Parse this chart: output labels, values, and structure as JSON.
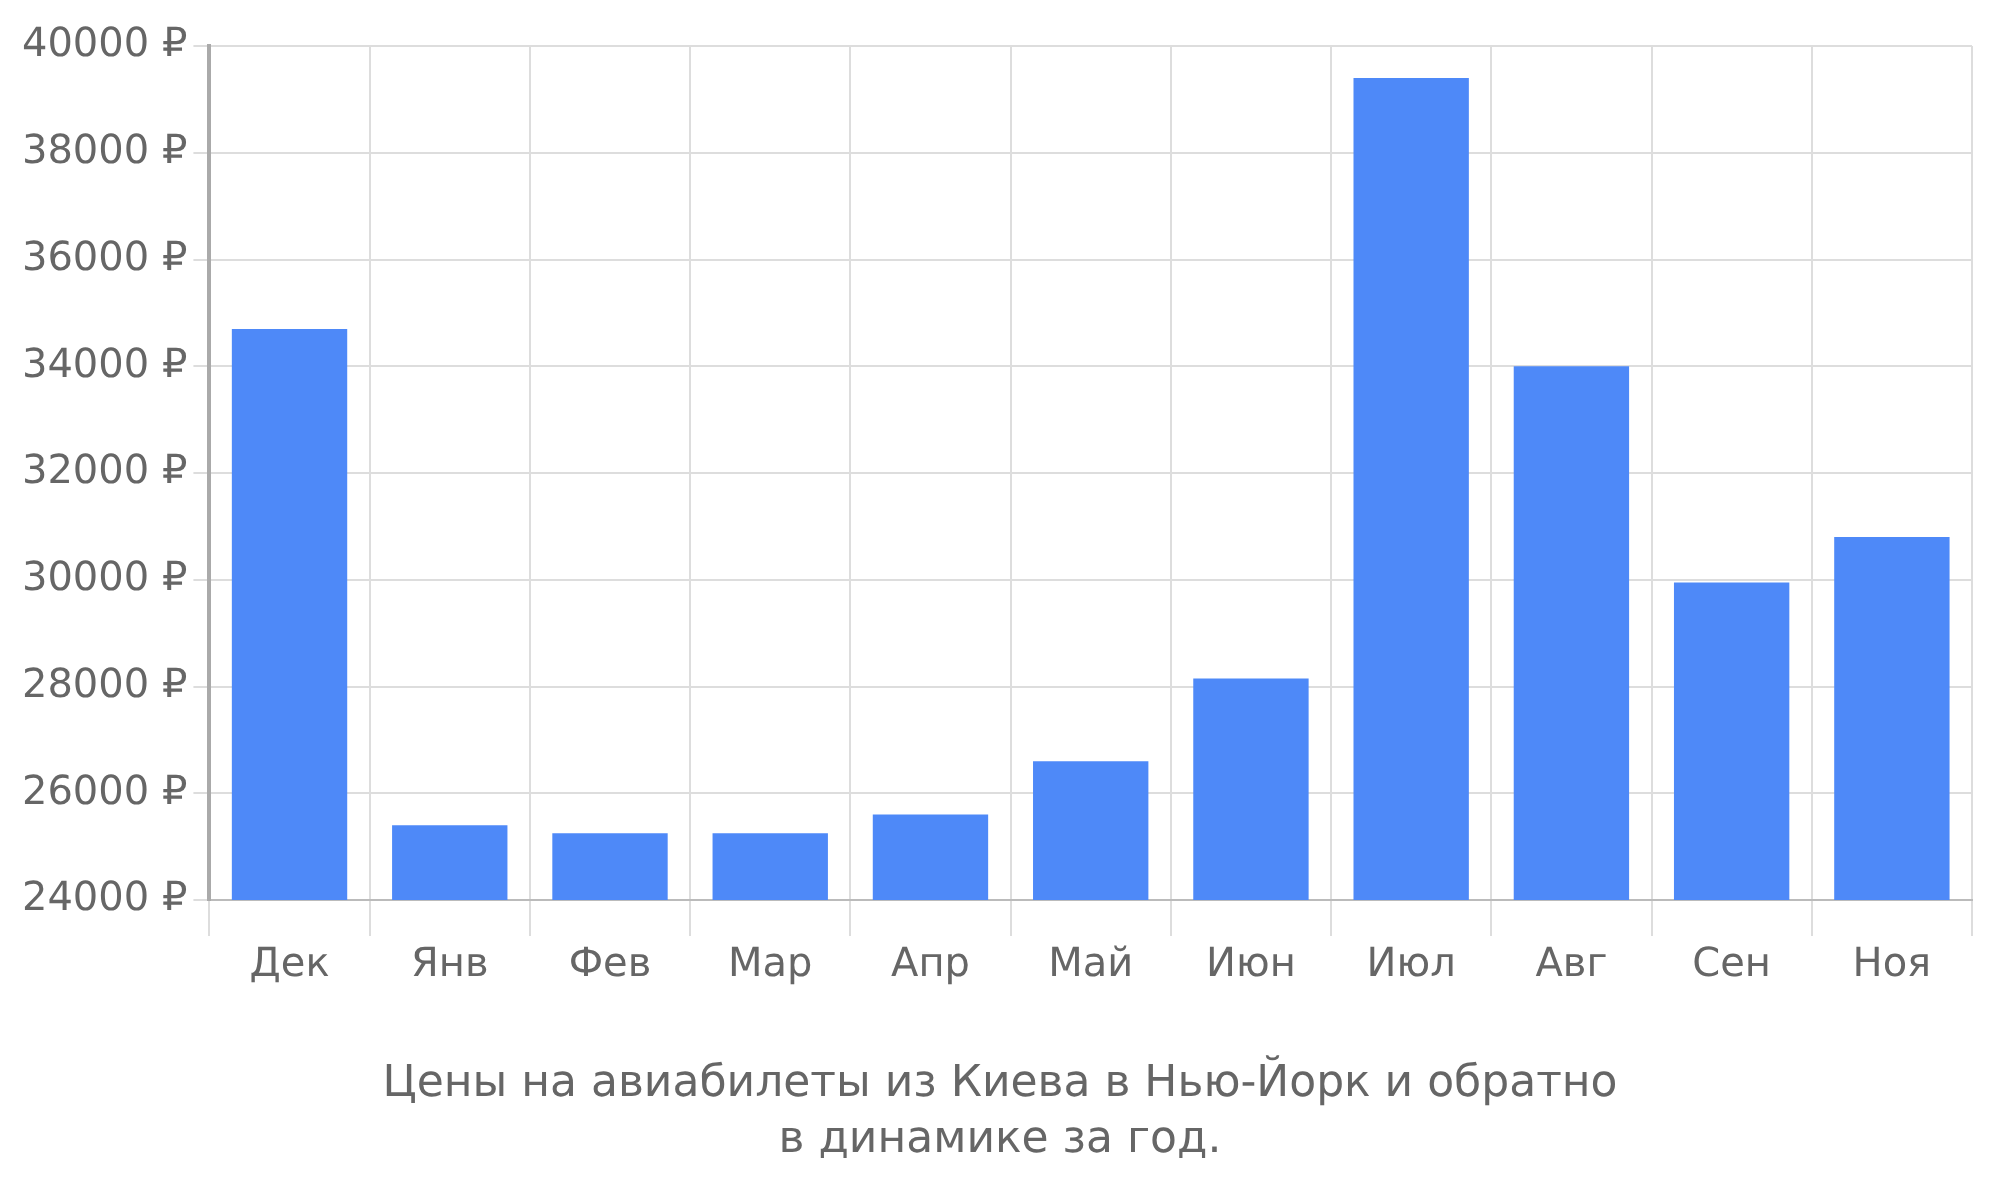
{
  "chart_data": {
    "type": "bar",
    "title": "Цены на авиабилеты из Киева в Нью-Йорк и обратно",
    "subtitle": "в динамике за год.",
    "categories": [
      "Дек",
      "Янв",
      "Фев",
      "Мар",
      "Апр",
      "Май",
      "Июн",
      "Июл",
      "Авг",
      "Сен",
      "Ноя"
    ],
    "values": [
      34700,
      25400,
      25250,
      25250,
      25600,
      26600,
      28150,
      39400,
      34000,
      29950,
      30800
    ],
    "color": "#4e89f8",
    "ylim": [
      24000,
      40000
    ],
    "yticks": [
      {
        "value": 24000,
        "label": "24000 ₽"
      },
      {
        "value": 26000,
        "label": "26000 ₽"
      },
      {
        "value": 28000,
        "label": "28000 ₽"
      },
      {
        "value": 30000,
        "label": "30000 ₽"
      },
      {
        "value": 32000,
        "label": "32000 ₽"
      },
      {
        "value": 34000,
        "label": "34000 ₽"
      },
      {
        "value": 36000,
        "label": "36000 ₽"
      },
      {
        "value": 38000,
        "label": "38000 ₽"
      },
      {
        "value": 40000,
        "label": "40000 ₽"
      }
    ],
    "grid": true,
    "legend": false
  }
}
